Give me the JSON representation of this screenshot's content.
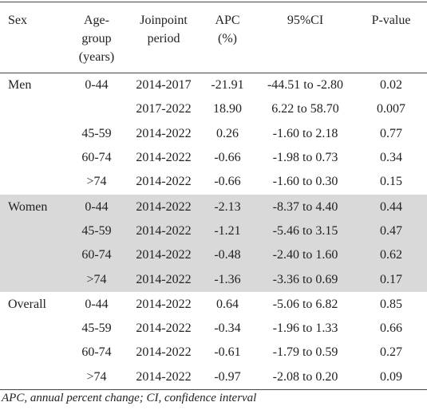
{
  "table": {
    "columns": [
      "Sex",
      "Age-group (years)",
      "Joinpoint period",
      "APC (%)",
      "95%CI",
      "P-value"
    ],
    "groups": [
      {
        "sex": "Men",
        "rows": [
          [
            "0-44",
            "2014-2017",
            "-21.91",
            "-44.51 to -2.80",
            "0.02"
          ],
          [
            null,
            "2017-2022",
            "18.90",
            "6.22 to 58.70",
            "0.007"
          ],
          [
            "45-59",
            "2014-2022",
            "0.26",
            "-1.60 to 2.18",
            "0.77"
          ],
          [
            "60-74",
            "2014-2022",
            "-0.66",
            "-1.98 to 0.73",
            "0.34"
          ],
          [
            ">74",
            "2014-2022",
            "-0.66",
            "-1.60 to 0.30",
            "0.15"
          ]
        ]
      },
      {
        "sex": "Women",
        "rows": [
          [
            "0-44",
            "2014-2022",
            "-2.13",
            "-8.37 to 4.40",
            "0.44"
          ],
          [
            "45-59",
            "2014-2022",
            "-1.21",
            "-5.46 to 3.15",
            "0.47"
          ],
          [
            "60-74",
            "2014-2022",
            "-0.48",
            "-2.40 to 1.60",
            "0.62"
          ],
          [
            ">74",
            "2014-2022",
            "-1.36",
            "-3.36 to 0.69",
            "0.17"
          ]
        ]
      },
      {
        "sex": "Overall",
        "rows": [
          [
            "0-44",
            "2014-2022",
            "0.64",
            "-5.06 to 6.82",
            "0.85"
          ],
          [
            "45-59",
            "2014-2022",
            "-0.34",
            "-1.96 to 1.33",
            "0.66"
          ],
          [
            "60-74",
            "2014-2022",
            "-0.61",
            "-1.79 to 0.59",
            "0.27"
          ],
          [
            ">74",
            "2014-2022",
            "-0.97",
            "-2.08 to 0.20",
            "0.09"
          ]
        ]
      }
    ]
  },
  "footnote": "APC, annual percent change; CI, confidence interval"
}
